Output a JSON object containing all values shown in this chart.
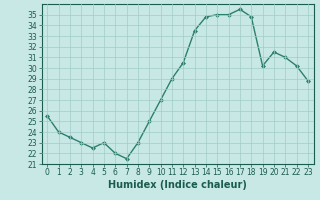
{
  "x": [
    0,
    1,
    2,
    3,
    4,
    5,
    6,
    7,
    8,
    9,
    10,
    11,
    12,
    13,
    14,
    15,
    16,
    17,
    18,
    19,
    20,
    21,
    22,
    23
  ],
  "y": [
    25.5,
    24.0,
    23.5,
    23.0,
    22.5,
    23.0,
    22.0,
    21.5,
    23.0,
    25.0,
    27.0,
    29.0,
    30.5,
    33.5,
    34.8,
    35.0,
    35.0,
    35.5,
    34.8,
    30.2,
    31.5,
    31.0,
    30.2,
    28.8
  ],
  "line_color": "#2d7f6e",
  "marker": "D",
  "marker_size": 2.0,
  "bg_color": "#c8e8e5",
  "grid_color": "#a0ccc8",
  "xlabel": "Humidex (Indice chaleur)",
  "xlim": [
    -0.5,
    23.5
  ],
  "ylim": [
    21,
    36
  ],
  "yticks": [
    21,
    22,
    23,
    24,
    25,
    26,
    27,
    28,
    29,
    30,
    31,
    32,
    33,
    34,
    35
  ],
  "xticks": [
    0,
    1,
    2,
    3,
    4,
    5,
    6,
    7,
    8,
    9,
    10,
    11,
    12,
    13,
    14,
    15,
    16,
    17,
    18,
    19,
    20,
    21,
    22,
    23
  ],
  "tick_color": "#1a5c4e",
  "label_color": "#1a5c4e",
  "tick_fontsize": 5.5,
  "xlabel_fontsize": 7.0,
  "linewidth": 1.0
}
